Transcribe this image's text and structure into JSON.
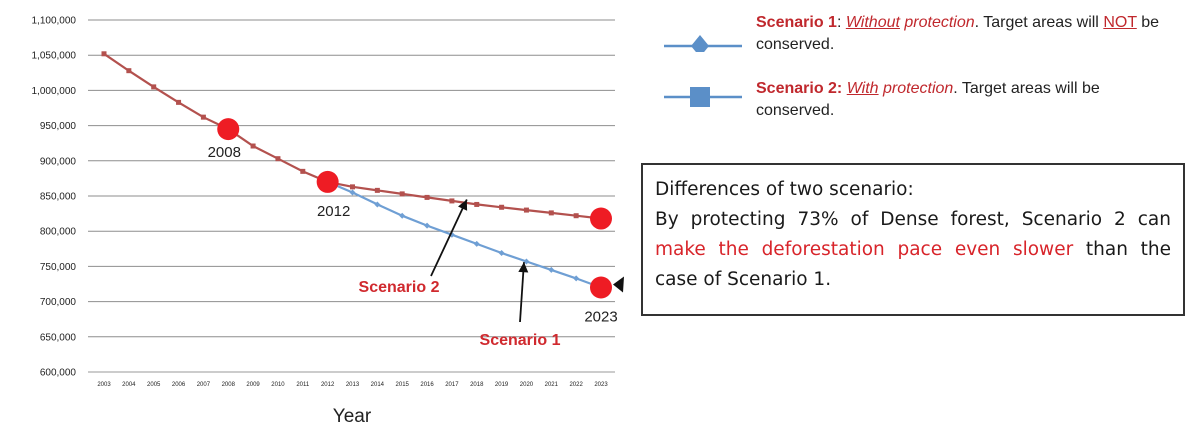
{
  "chart_data": {
    "type": "line",
    "xlabel": "Year",
    "ylabel": "",
    "ylim": [
      600000,
      1100000
    ],
    "y_ticks": [
      600000,
      650000,
      700000,
      750000,
      800000,
      850000,
      900000,
      950000,
      1000000,
      1050000,
      1100000
    ],
    "y_tick_labels": [
      "600,000",
      "650,000",
      "700,000",
      "750,000",
      "800,000",
      "850,000",
      "900,000",
      "950,000",
      "1,000,000",
      "1,050,000",
      "1,100,000"
    ],
    "x": [
      2003,
      2004,
      2005,
      2006,
      2007,
      2008,
      2009,
      2010,
      2011,
      2012,
      2013,
      2014,
      2015,
      2016,
      2017,
      2018,
      2019,
      2020,
      2021,
      2022,
      2023
    ],
    "grid": "horizontal",
    "series": [
      {
        "name": "Scenario 1",
        "color": "#6f9fd4",
        "marker": "diamond",
        "x": [
          2012,
          2013,
          2014,
          2015,
          2016,
          2017,
          2018,
          2019,
          2020,
          2021,
          2022,
          2023
        ],
        "values": [
          870000,
          855000,
          838000,
          822000,
          808000,
          795000,
          782000,
          769000,
          757000,
          745000,
          733000,
          720000
        ]
      },
      {
        "name": "Scenario 2",
        "color": "#b3514e",
        "marker": "square",
        "x": [
          2003,
          2004,
          2005,
          2006,
          2007,
          2008,
          2009,
          2010,
          2011,
          2012,
          2013,
          2014,
          2015,
          2016,
          2017,
          2018,
          2019,
          2020,
          2021,
          2022,
          2023
        ],
        "values": [
          1052000,
          1028000,
          1005000,
          983000,
          962000,
          945000,
          921000,
          903000,
          885000,
          870000,
          863000,
          858000,
          853000,
          848000,
          843000,
          838000,
          834000,
          830000,
          826000,
          822000,
          818000
        ]
      }
    ],
    "highlights": [
      {
        "x": 2008,
        "y": 945000,
        "label": "2008"
      },
      {
        "x": 2012,
        "y": 870000,
        "label": "2012"
      },
      {
        "x": 2023,
        "y": 818000,
        "label": ""
      },
      {
        "x": 2023,
        "y": 720000,
        "label": "2023"
      }
    ],
    "highlight_color": "#ee1c24",
    "annotations": [
      {
        "text": "Scenario 2",
        "color": "#d0292e",
        "arrow_to": {
          "x": 2017.6,
          "y": 845000
        }
      },
      {
        "text": "Scenario 1",
        "color": "#d0292e",
        "arrow_to": {
          "x": 2019.9,
          "y": 756000
        }
      }
    ]
  },
  "legend": [
    {
      "name": "Scenario 1",
      "sep": ": ",
      "emph": "Without protection",
      "emph_underlined_word": "Without",
      "tail_pre": ". Target areas will ",
      "not_word": "NOT",
      "tail_post": " be conserved.",
      "marker": "diamond",
      "color": "#5b8fc8"
    },
    {
      "name": "Scenario 2:",
      "sep": " ",
      "emph": "With protection",
      "emph_underlined_word": "With",
      "tail_pre": ". Target areas will be conserved.",
      "not_word": "",
      "tail_post": "",
      "marker": "square",
      "color": "#5b8fc8"
    }
  ],
  "note": {
    "title": "Differences of two scenario:",
    "body_pre": "By protecting 73% of Dense forest, Scenario 2 can ",
    "highlight": "make the deforestation pace even slower",
    "body_post": " than the case of Scenario 1.",
    "highlight_color": "#d8242a"
  }
}
